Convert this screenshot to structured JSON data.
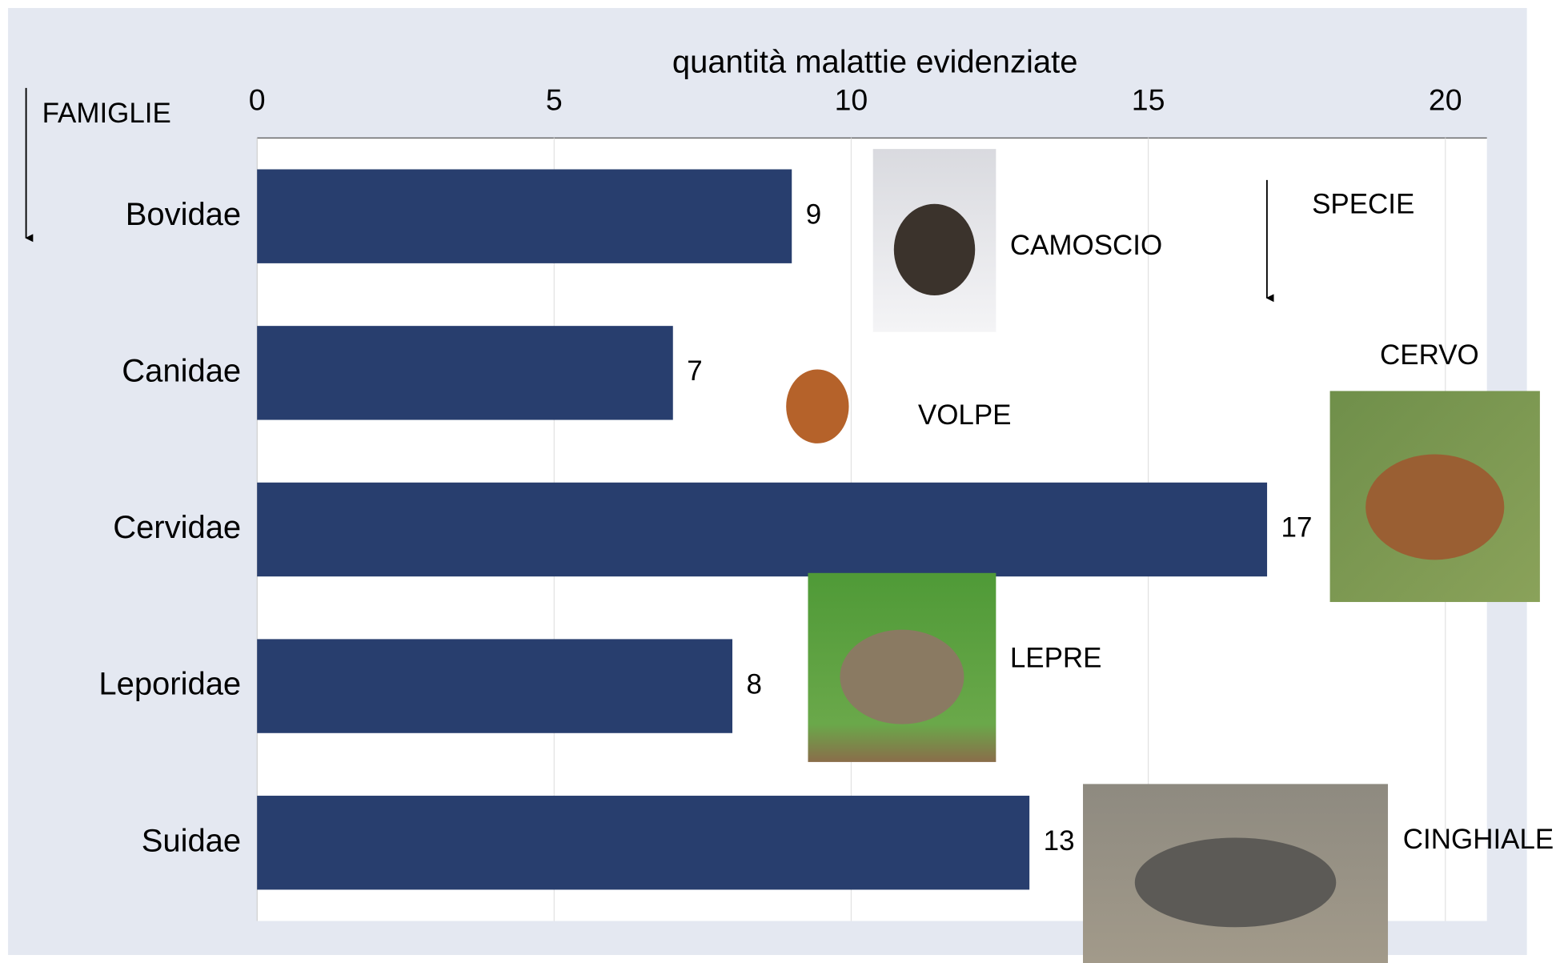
{
  "chart_data": {
    "type": "bar",
    "orientation": "horizontal",
    "title": "quantità malattie evidenziate",
    "y_label": "FAMIGLIE",
    "annotation": "SPECIE",
    "categories": [
      "Bovidae",
      "Canidae",
      "Cervidae",
      "Leporidae",
      "Suidae"
    ],
    "species": [
      "CAMOSCIO",
      "VOLPE",
      "CERVO",
      "LEPRE",
      "CINGHIALE"
    ],
    "values": [
      9,
      7,
      17,
      8,
      13
    ],
    "color": "#283e6e",
    "xlim": [
      0,
      20.7
    ],
    "xticks": [
      0,
      5,
      10,
      15,
      20
    ],
    "grid": true
  }
}
